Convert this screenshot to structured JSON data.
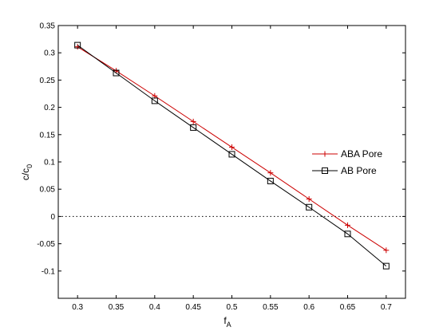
{
  "chart_data": {
    "type": "line",
    "title": "",
    "xlabel_main": "f",
    "xlabel_sub": "A",
    "ylabel_main": "c/c",
    "ylabel_sub": "0",
    "xlim": [
      0.275,
      0.725
    ],
    "ylim": [
      -0.15,
      0.35
    ],
    "x_ticks": [
      0.3,
      0.35,
      0.4,
      0.45,
      0.5,
      0.55,
      0.6,
      0.65,
      0.7
    ],
    "x_tick_labels": [
      "0.3",
      "0.35",
      "0.4",
      "0.45",
      "0.5",
      "0.55",
      "0.6",
      "0.65",
      "0.7"
    ],
    "y_ticks": [
      -0.1,
      -0.05,
      0,
      0.05,
      0.1,
      0.15,
      0.2,
      0.25,
      0.3,
      0.35
    ],
    "y_tick_labels": [
      "-0.1",
      "-0.05",
      "0",
      "0.05",
      "0.1",
      "0.15",
      "0.2",
      "0.25",
      "0.3",
      "0.35"
    ],
    "grid": false,
    "legend_position": "right",
    "reference_line": {
      "y": 0,
      "style": "dotted"
    },
    "x": [
      0.3,
      0.35,
      0.4,
      0.45,
      0.5,
      0.55,
      0.6,
      0.65,
      0.7
    ],
    "series": [
      {
        "name": "ABA Pore",
        "color": "#cc0000",
        "marker": "plus",
        "values": [
          0.311,
          0.267,
          0.221,
          0.174,
          0.127,
          0.08,
          0.032,
          -0.016,
          -0.062
        ]
      },
      {
        "name": "AB Pore",
        "color": "#000000",
        "marker": "square",
        "values": [
          0.314,
          0.263,
          0.212,
          0.163,
          0.114,
          0.065,
          0.017,
          -0.032,
          -0.091
        ]
      }
    ]
  }
}
